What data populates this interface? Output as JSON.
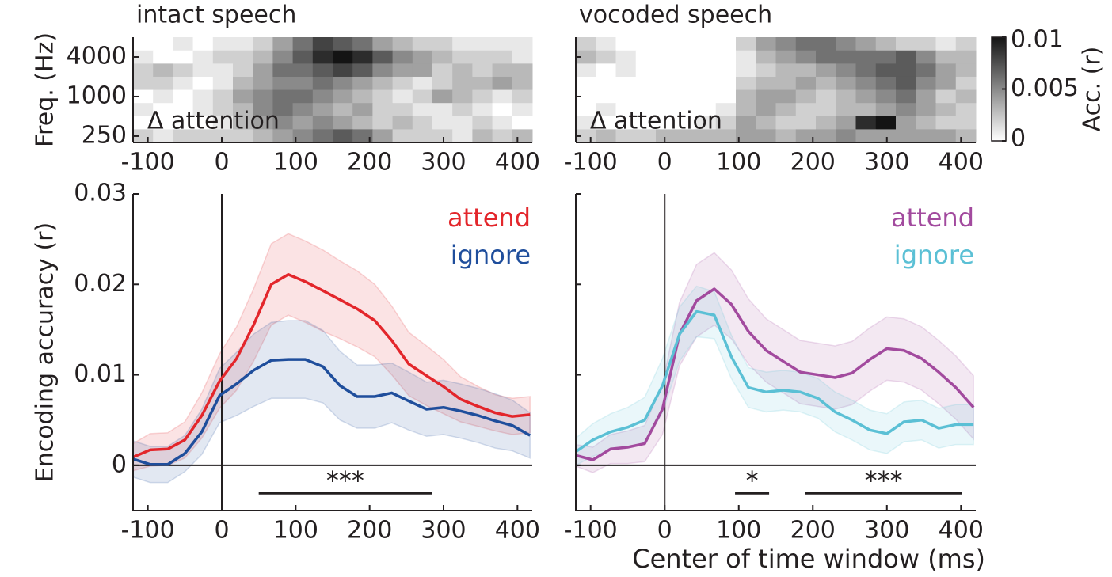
{
  "chart_data": [
    {
      "type": "heatmap",
      "title": "intact speech",
      "annotation": "Δ attention",
      "ylabel": "Freq. (Hz)",
      "xlim": [
        -120,
        420
      ],
      "xticks": [
        -100,
        0,
        100,
        200,
        300,
        400
      ],
      "ylim": [
        200,
        8000
      ],
      "log_y": true,
      "yticks": [
        250,
        1000,
        4000
      ],
      "clim": [
        0,
        0.01
      ],
      "xbins": [
        -120,
        -93,
        -66,
        -39,
        -12,
        15,
        42,
        69,
        96,
        123,
        150,
        177,
        204,
        231,
        258,
        285,
        312,
        339,
        366,
        393,
        420
      ],
      "ybins": [
        8000,
        5024,
        3170,
        2000,
        1262,
        796,
        502,
        317,
        200
      ],
      "values": [
        [
          0,
          0,
          0.001,
          0,
          0.001,
          0.001,
          0.002,
          0.004,
          0.006,
          0.008,
          0.007,
          0.006,
          0.004,
          0.003,
          0.002,
          0.002,
          0.001,
          0.001,
          0.001,
          0.001
        ],
        [
          0.001,
          0,
          0,
          0.001,
          0.002,
          0.002,
          0.003,
          0.005,
          0.007,
          0.009,
          0.01,
          0.009,
          0.007,
          0.005,
          0.004,
          0.003,
          0.002,
          0.002,
          0.002,
          0.001
        ],
        [
          0.002,
          0.003,
          0.002,
          0.001,
          0.001,
          0.002,
          0.004,
          0.006,
          0.006,
          0.007,
          0.008,
          0.007,
          0.005,
          0.004,
          0.004,
          0.002,
          0.003,
          0.002,
          0.003,
          0.003
        ],
        [
          0.002,
          0.002,
          0.001,
          0,
          0.001,
          0.003,
          0.004,
          0.005,
          0.005,
          0.006,
          0.005,
          0.004,
          0.003,
          0.002,
          0.001,
          0.002,
          0.003,
          0.003,
          0.004,
          0.003
        ],
        [
          0,
          0.001,
          0,
          0.001,
          0.002,
          0.004,
          0.005,
          0.006,
          0.006,
          0.005,
          0.004,
          0.003,
          0.002,
          0.001,
          0.002,
          0.004,
          0.003,
          0.002,
          0.001,
          0.002
        ],
        [
          0.001,
          0,
          0,
          0.001,
          0.002,
          0.003,
          0.005,
          0.006,
          0.005,
          0.004,
          0.003,
          0.004,
          0.002,
          0.002,
          0.001,
          0.001,
          0.002,
          0.001,
          0,
          0.001
        ],
        [
          0,
          0,
          0,
          0,
          0.001,
          0.003,
          0.004,
          0.005,
          0.004,
          0.005,
          0.004,
          0.003,
          0.002,
          0.003,
          0.002,
          0.001,
          0.001,
          0.002,
          0.001,
          0
        ],
        [
          0.002,
          0.001,
          0.002,
          0.002,
          0.002,
          0.002,
          0.003,
          0.004,
          0.005,
          0.006,
          0.007,
          0.006,
          0.004,
          0.002,
          0.002,
          0.002,
          0.001,
          0.003,
          0.002,
          0.003
        ]
      ]
    },
    {
      "type": "heatmap",
      "title": "vocoded speech",
      "annotation": "Δ attention",
      "show_ytick_labels": false,
      "xlim": [
        -120,
        420
      ],
      "xticks": [
        -100,
        0,
        100,
        200,
        300,
        400
      ],
      "ylim": [
        200,
        8000
      ],
      "log_y": true,
      "yticks": [
        250,
        1000,
        4000
      ],
      "clim": [
        0,
        0.01
      ],
      "colorbar": {
        "label": "Acc. (r)",
        "lim": [
          0,
          0.01
        ],
        "ticks": [
          0,
          0.005,
          0.01
        ]
      },
      "xbins": [
        -120,
        -93,
        -66,
        -39,
        -12,
        15,
        42,
        69,
        96,
        123,
        150,
        177,
        204,
        231,
        258,
        285,
        312,
        339,
        366,
        393,
        420
      ],
      "ybins": [
        8000,
        5024,
        3170,
        2000,
        1262,
        796,
        502,
        317,
        200
      ],
      "values": [
        [
          0.002,
          0.001,
          0,
          0,
          0,
          0,
          0,
          0,
          0.002,
          0.004,
          0.005,
          0.006,
          0.006,
          0.005,
          0.004,
          0.003,
          0.002,
          0.002,
          0.001,
          0.002
        ],
        [
          0.003,
          0.002,
          0.001,
          0,
          0,
          0,
          0,
          0,
          0.001,
          0.003,
          0.004,
          0.005,
          0.006,
          0.006,
          0.006,
          0.006,
          0.007,
          0.005,
          0.003,
          0.003
        ],
        [
          0.001,
          0,
          0.001,
          0,
          0,
          0,
          0,
          0,
          0.001,
          0.002,
          0.003,
          0.003,
          0.004,
          0.005,
          0.006,
          0.007,
          0.007,
          0.006,
          0.004,
          0.003
        ],
        [
          0,
          0,
          0,
          0,
          0,
          0,
          0,
          0,
          0.002,
          0.003,
          0.003,
          0.004,
          0.003,
          0.004,
          0.005,
          0.006,
          0.007,
          0.005,
          0.004,
          0.002
        ],
        [
          0,
          0,
          0,
          0,
          0,
          0,
          0,
          0,
          0.003,
          0.004,
          0.004,
          0.003,
          0.002,
          0.003,
          0.004,
          0.005,
          0.006,
          0.004,
          0.002,
          0.003
        ],
        [
          0,
          0.001,
          0,
          0,
          0,
          0,
          0,
          0.001,
          0.003,
          0.004,
          0.003,
          0.002,
          0.002,
          0.003,
          0.003,
          0.004,
          0.005,
          0.004,
          0.003,
          0.002
        ],
        [
          0.001,
          0,
          0,
          0,
          0,
          0,
          0.001,
          0.002,
          0.004,
          0.003,
          0.002,
          0.002,
          0.003,
          0.004,
          0.009,
          0.01,
          0.004,
          0.003,
          0.002,
          0.002
        ],
        [
          0.002,
          0.003,
          0.002,
          0.002,
          0.003,
          0.003,
          0.003,
          0.003,
          0.004,
          0.004,
          0.003,
          0.004,
          0.004,
          0.005,
          0.004,
          0.004,
          0.004,
          0.004,
          0.004,
          0.003
        ]
      ]
    },
    {
      "type": "line",
      "ylabel": "Encoding accuracy (r)",
      "zero_lines": true,
      "xlim": [
        -120,
        420
      ],
      "xticks": [
        -100,
        0,
        100,
        200,
        300,
        400
      ],
      "ylim": [
        -0.005,
        0.03
      ],
      "yticks": [
        0,
        0.01,
        0.02,
        0.03
      ],
      "x": [
        -120,
        -97,
        -73,
        -50,
        -27,
        -3,
        20,
        43,
        67,
        90,
        113,
        137,
        160,
        183,
        207,
        230,
        253,
        277,
        300,
        323,
        347,
        370,
        393,
        417
      ],
      "series": [
        {
          "name": "attend",
          "color": "#e3262b",
          "values": [
            0.0009,
            0.0017,
            0.0018,
            0.0028,
            0.0055,
            0.0093,
            0.0118,
            0.0155,
            0.02,
            0.0211,
            0.0203,
            0.0193,
            0.0183,
            0.0173,
            0.016,
            0.0138,
            0.0112,
            0.0099,
            0.0087,
            0.0073,
            0.0065,
            0.0058,
            0.0054,
            0.0056
          ],
          "error": [
            0.0015,
            0.0018,
            0.0018,
            0.002,
            0.0025,
            0.003,
            0.0035,
            0.004,
            0.0045,
            0.0045,
            0.0045,
            0.0045,
            0.0043,
            0.0042,
            0.004,
            0.0038,
            0.0035,
            0.0033,
            0.003,
            0.0025,
            0.0022,
            0.002,
            0.002,
            0.002
          ]
        },
        {
          "name": "ignore",
          "color": "#1f4e9c",
          "values": [
            0.0007,
            0.0001,
            0.0001,
            0.0013,
            0.0037,
            0.0077,
            0.009,
            0.0105,
            0.0116,
            0.0117,
            0.0117,
            0.0109,
            0.0088,
            0.0076,
            0.0076,
            0.008,
            0.0071,
            0.0062,
            0.0064,
            0.006,
            0.0055,
            0.0049,
            0.0044,
            0.0033
          ],
          "error": [
            0.002,
            0.002,
            0.002,
            0.002,
            0.0025,
            0.003,
            0.0035,
            0.004,
            0.0042,
            0.0043,
            0.0043,
            0.004,
            0.0038,
            0.0035,
            0.0035,
            0.0033,
            0.0032,
            0.003,
            0.003,
            0.003,
            0.003,
            0.003,
            0.0028,
            0.0025
          ]
        }
      ],
      "significance": [
        {
          "start": 50,
          "end": 284,
          "label": "***"
        }
      ]
    },
    {
      "type": "line",
      "xlabel": "Center of time window (ms)",
      "zero_lines": true,
      "show_ytick_labels": false,
      "xlim": [
        -120,
        420
      ],
      "xticks": [
        -100,
        0,
        100,
        200,
        300,
        400
      ],
      "ylim": [
        -0.005,
        0.03
      ],
      "yticks": [
        0,
        0.01,
        0.02,
        0.03
      ],
      "x": [
        -120,
        -97,
        -73,
        -50,
        -27,
        -3,
        20,
        43,
        67,
        90,
        113,
        137,
        160,
        183,
        207,
        230,
        253,
        277,
        300,
        323,
        347,
        370,
        393,
        417
      ],
      "series": [
        {
          "name": "attend",
          "color": "#a24a9e",
          "values": [
            0.0011,
            0.0006,
            0.0018,
            0.002,
            0.0024,
            0.0062,
            0.0145,
            0.0182,
            0.0195,
            0.0178,
            0.0148,
            0.0127,
            0.0115,
            0.0103,
            0.01,
            0.0097,
            0.0102,
            0.0117,
            0.0129,
            0.0127,
            0.0118,
            0.0103,
            0.0086,
            0.0064
          ],
          "error": [
            0.0012,
            0.0014,
            0.0016,
            0.0018,
            0.002,
            0.0028,
            0.0035,
            0.004,
            0.004,
            0.0038,
            0.0036,
            0.0035,
            0.0035,
            0.0035,
            0.0035,
            0.0035,
            0.0035,
            0.0035,
            0.0035,
            0.0035,
            0.0035,
            0.0035,
            0.0035,
            0.0035
          ]
        },
        {
          "name": "ignore",
          "color": "#5bc0d5",
          "values": [
            0.0015,
            0.0028,
            0.0037,
            0.0042,
            0.005,
            0.0088,
            0.0145,
            0.017,
            0.0166,
            0.012,
            0.0086,
            0.0081,
            0.0083,
            0.0081,
            0.0074,
            0.0059,
            0.005,
            0.0039,
            0.0035,
            0.0048,
            0.005,
            0.0041,
            0.0045,
            0.0045
          ],
          "error": [
            0.0015,
            0.0018,
            0.002,
            0.0022,
            0.0025,
            0.003,
            0.003,
            0.0028,
            0.0026,
            0.0024,
            0.0022,
            0.0022,
            0.0022,
            0.0022,
            0.0022,
            0.0022,
            0.0022,
            0.0022,
            0.0022,
            0.0022,
            0.0022,
            0.0022,
            0.0022,
            0.0022
          ]
        }
      ],
      "significance": [
        {
          "start": 95,
          "end": 141,
          "label": "*"
        },
        {
          "start": 190,
          "end": 401,
          "label": "***"
        }
      ]
    }
  ]
}
